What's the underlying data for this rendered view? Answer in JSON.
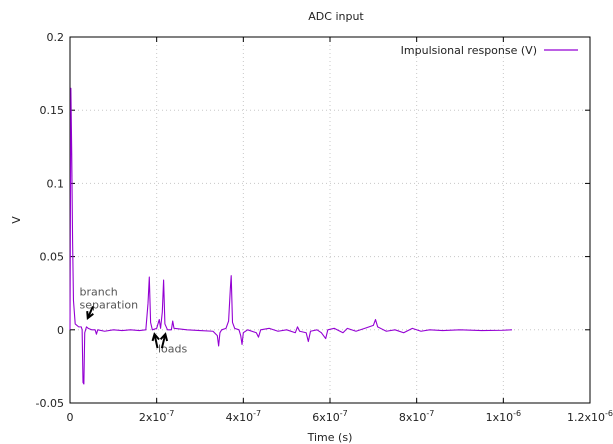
{
  "chart_data": {
    "type": "line",
    "title": "ADC input",
    "xlabel": "Time (s)",
    "ylabel": "V",
    "xlim": [
      0,
      1.2e-06
    ],
    "ylim": [
      -0.05,
      0.2
    ],
    "grid": true,
    "legend_position": "top-right",
    "x_ticks": [
      {
        "value": 0,
        "base": "0",
        "exp": ""
      },
      {
        "value": 2e-07,
        "base": "2x10",
        "exp": "-7"
      },
      {
        "value": 4e-07,
        "base": "4x10",
        "exp": "-7"
      },
      {
        "value": 6e-07,
        "base": "6x10",
        "exp": "-7"
      },
      {
        "value": 8e-07,
        "base": "8x10",
        "exp": "-7"
      },
      {
        "value": 1e-06,
        "base": "1x10",
        "exp": "-6"
      },
      {
        "value": 1.2e-06,
        "base": "1.2x10",
        "exp": "-6"
      }
    ],
    "y_ticks": [
      {
        "value": -0.05,
        "label": "-0.05"
      },
      {
        "value": 0,
        "label": "0"
      },
      {
        "value": 0.05,
        "label": "0.05"
      },
      {
        "value": 0.1,
        "label": "0.1"
      },
      {
        "value": 0.15,
        "label": "0.15"
      },
      {
        "value": 0.2,
        "label": "0.2"
      }
    ],
    "series": [
      {
        "name": "Impulsional response (V)",
        "color": "#9400d3",
        "points": [
          [
            0,
            0
          ],
          [
            2e-09,
            0.165
          ],
          [
            4e-09,
            0.12
          ],
          [
            6e-09,
            0.06
          ],
          [
            8e-09,
            0.02
          ],
          [
            1.2e-08,
            0.004
          ],
          [
            2e-08,
            0.002
          ],
          [
            2.6e-08,
            0.002
          ],
          [
            2.8e-08,
            0.0
          ],
          [
            3e-08,
            -0.036
          ],
          [
            3.2e-08,
            -0.037
          ],
          [
            3.4e-08,
            -0.002
          ],
          [
            3.8e-08,
            0.002
          ],
          [
            4.2e-08,
            0.001
          ],
          [
            5e-08,
            0.0
          ],
          [
            5.8e-08,
            0.0
          ],
          [
            6.1e-08,
            -0.003
          ],
          [
            6.4e-08,
            0.0
          ],
          [
            8e-08,
            -0.001
          ],
          [
            1e-07,
            0.0
          ],
          [
            1.2e-07,
            -0.0005
          ],
          [
            1.4e-07,
            0.0
          ],
          [
            1.6e-07,
            -0.0005
          ],
          [
            1.75e-07,
            0.0
          ],
          [
            1.8e-07,
            0.018
          ],
          [
            1.83e-07,
            0.036
          ],
          [
            1.86e-07,
            0.005
          ],
          [
            1.9e-07,
            0.0
          ],
          [
            2e-07,
            0.001
          ],
          [
            2.06e-07,
            0.007
          ],
          [
            2.09e-07,
            0.001
          ],
          [
            2.13e-07,
            0.012
          ],
          [
            2.16e-07,
            0.034
          ],
          [
            2.19e-07,
            0.004
          ],
          [
            2.25e-07,
            0.0
          ],
          [
            2.34e-07,
            0.0
          ],
          [
            2.37e-07,
            0.006
          ],
          [
            2.4e-07,
            0.001
          ],
          [
            2.7e-07,
            0.0
          ],
          [
            3e-07,
            -0.0005
          ],
          [
            3.3e-07,
            -0.001
          ],
          [
            3.4e-07,
            -0.004
          ],
          [
            3.43e-07,
            -0.011
          ],
          [
            3.46e-07,
            -0.002
          ],
          [
            3.5e-07,
            0.0
          ],
          [
            3.6e-07,
            0.001
          ],
          [
            3.66e-07,
            0.006
          ],
          [
            3.7e-07,
            0.028
          ],
          [
            3.72e-07,
            0.037
          ],
          [
            3.75e-07,
            0.005
          ],
          [
            3.8e-07,
            0.001
          ],
          [
            3.9e-07,
            0.0
          ],
          [
            3.94e-07,
            -0.004
          ],
          [
            3.97e-07,
            -0.01
          ],
          [
            4e-07,
            -0.002
          ],
          [
            4.1e-07,
            0.0
          ],
          [
            4.3e-07,
            -0.002
          ],
          [
            4.35e-07,
            -0.005
          ],
          [
            4.4e-07,
            0.0
          ],
          [
            4.6e-07,
            0.001
          ],
          [
            4.8e-07,
            -0.001
          ],
          [
            5e-07,
            0.0
          ],
          [
            5.2e-07,
            -0.002
          ],
          [
            5.25e-07,
            0.002
          ],
          [
            5.3e-07,
            -0.001
          ],
          [
            5.45e-07,
            -0.002
          ],
          [
            5.5e-07,
            -0.008
          ],
          [
            5.55e-07,
            -0.001
          ],
          [
            5.7e-07,
            0.0
          ],
          [
            5.8e-07,
            -0.002
          ],
          [
            5.9e-07,
            -0.006
          ],
          [
            5.95e-07,
            0.0
          ],
          [
            6.1e-07,
            0.001
          ],
          [
            6.3e-07,
            -0.002
          ],
          [
            6.4e-07,
            0.001
          ],
          [
            6.6e-07,
            -0.001
          ],
          [
            6.8e-07,
            0.001
          ],
          [
            7e-07,
            0.003
          ],
          [
            7.05e-07,
            0.007
          ],
          [
            7.1e-07,
            0.002
          ],
          [
            7.3e-07,
            -0.001
          ],
          [
            7.5e-07,
            0.0
          ],
          [
            7.7e-07,
            -0.002
          ],
          [
            7.9e-07,
            0.001
          ],
          [
            8.1e-07,
            -0.001
          ],
          [
            8.3e-07,
            0.0
          ],
          [
            8.6e-07,
            -0.0005
          ],
          [
            9e-07,
            0.0
          ],
          [
            9.5e-07,
            -0.0005
          ],
          [
            1e-06,
            -0.0003
          ],
          [
            1.02e-06,
            0.0
          ]
        ]
      }
    ],
    "annotations": [
      {
        "lines": [
          "branch",
          "separation"
        ],
        "x": 2.2e-08,
        "y": 0.0235
      },
      {
        "lines": [
          "loads"
        ],
        "x": 2.03e-07,
        "y": -0.0155
      }
    ],
    "arrows": [
      {
        "from": [
          5.3e-08,
          0.016
        ],
        "to": [
          4.1e-08,
          0.008
        ]
      },
      {
        "from": [
          2.02e-07,
          -0.0125
        ],
        "to": [
          1.95e-07,
          -0.003
        ]
      },
      {
        "from": [
          2.12e-07,
          -0.0125
        ],
        "to": [
          2.2e-07,
          -0.003
        ]
      }
    ]
  }
}
